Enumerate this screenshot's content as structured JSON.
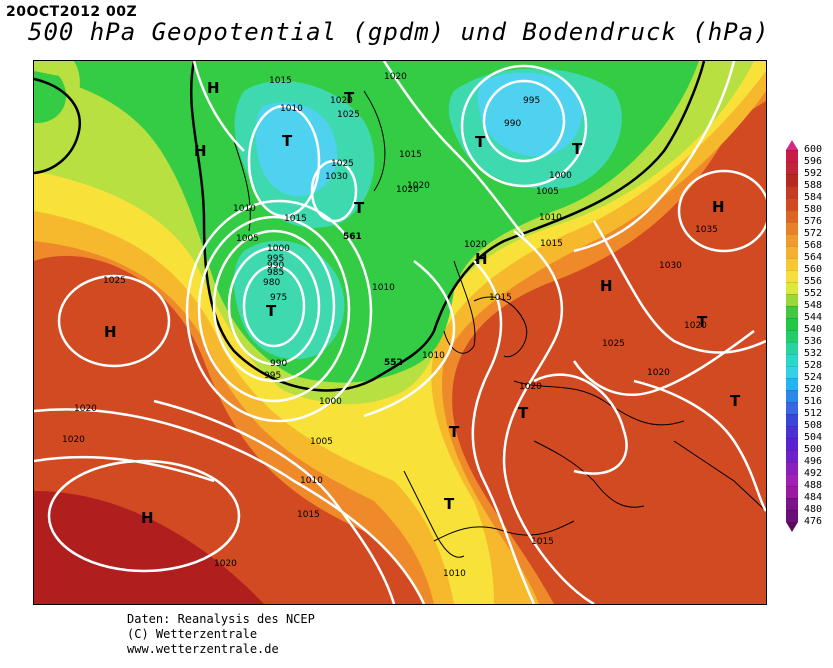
{
  "header": {
    "run_label": "20OCT2012 00Z",
    "title": "500 hPa Geopotential (gpdm) und Bodendruck (hPa)"
  },
  "colors": {
    "darkred": "#b01e1e",
    "red": "#cc3a24",
    "orange_red": "#de5a24",
    "orange": "#ee8a2a",
    "yellow_orange": "#f6b82c",
    "yellow": "#f8e23a",
    "yellow_green": "#b8e040",
    "green": "#33cc44",
    "teal": "#3fd9b0",
    "light_blue": "#4fd2f0",
    "isobar": "#ffffff",
    "contour_552": "#000000"
  },
  "map": {
    "pressure_labels": [
      "1015",
      "1020",
      "1010",
      "1025",
      "1020",
      "1030",
      "1025",
      "1015",
      "1020",
      "1010",
      "1005",
      "1000",
      "995",
      "990",
      "985",
      "980",
      "975",
      "990",
      "995",
      "1000",
      "1005",
      "1010",
      "1015",
      "1020",
      "1020",
      "1015",
      "1010",
      "1015",
      "1020",
      "1025",
      "1030",
      "1035",
      "1020",
      "1025",
      "1020",
      "1020",
      "1015",
      "1010",
      "1020",
      "995",
      "990",
      "1000",
      "1005",
      "1010",
      "1015",
      "1010",
      "1020"
    ],
    "pressure_systems": [
      "H",
      "H",
      "H",
      "H",
      "H",
      "H",
      "H",
      "T",
      "T",
      "T",
      "T",
      "T",
      "T",
      "T",
      "T",
      "T",
      "T",
      "T"
    ],
    "contour_labels": [
      "561",
      "552"
    ]
  },
  "legend": {
    "values": [
      "600",
      "596",
      "592",
      "588",
      "584",
      "580",
      "576",
      "572",
      "568",
      "564",
      "560",
      "556",
      "552",
      "548",
      "544",
      "540",
      "536",
      "532",
      "528",
      "524",
      "520",
      "516",
      "512",
      "508",
      "504",
      "500",
      "496",
      "492",
      "488",
      "484",
      "480",
      "476"
    ],
    "colors": [
      "#c81b48",
      "#c22438",
      "#b62820",
      "#c63a24",
      "#d24a22",
      "#de6424",
      "#e8822a",
      "#ee9a2c",
      "#f4b030",
      "#f6c836",
      "#f8de3c",
      "#dce83a",
      "#9ad83a",
      "#44c844",
      "#22c844",
      "#22cc66",
      "#2ad4a0",
      "#2ad8c8",
      "#34d0e8",
      "#26b4f0",
      "#2a88e8",
      "#3a66e4",
      "#3a46d8",
      "#4a32d0",
      "#5a22d0",
      "#7020c8",
      "#8a20c0",
      "#a020b8",
      "#9a1aa0",
      "#7a1488",
      "#6a1078"
    ]
  },
  "credits": {
    "line1": "Daten: Reanalysis des NCEP",
    "line2": "(C) Wetterzentrale",
    "line3": "www.wetterzentrale.de"
  }
}
